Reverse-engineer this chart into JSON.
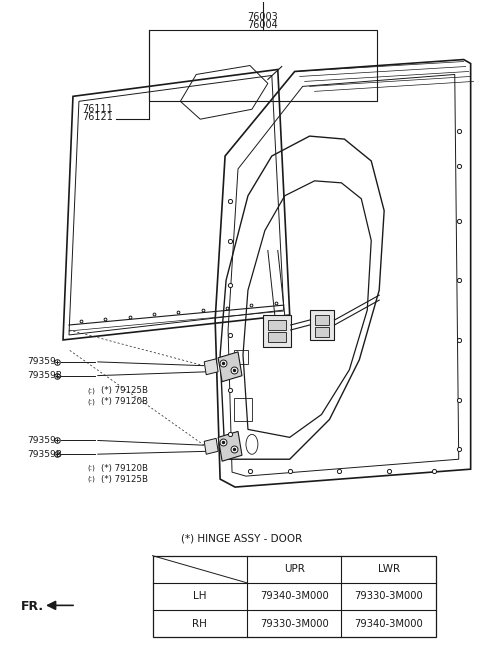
{
  "bg_color": "#ffffff",
  "line_color": "#1a1a1a",
  "table_title": "(*) HINGE ASSY - DOOR",
  "table": {
    "headers": [
      "",
      "UPR",
      "LWR"
    ],
    "rows": [
      [
        "LH",
        "79340-3M000",
        "79330-3M000"
      ],
      [
        "RH",
        "79330-3M000",
        "79340-3M000"
      ]
    ]
  },
  "labels_top": [
    "76003",
    "76004"
  ],
  "labels_left": [
    "76111",
    "76121"
  ],
  "upper_hinge_labels": [
    "79359",
    "79359B",
    "(*) 79125B",
    "(*) 79120B"
  ],
  "lower_hinge_labels": [
    "79359",
    "79359B",
    "(*) 79120B",
    "(*) 79125B"
  ],
  "fr_text": "FR."
}
